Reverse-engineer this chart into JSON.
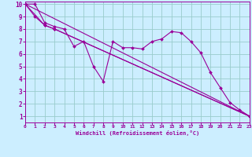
{
  "xlabel": "Windchill (Refroidissement éolien,°C)",
  "bg_color": "#cceeff",
  "line_color": "#990099",
  "grid_color": "#99cccc",
  "xlim": [
    0,
    23
  ],
  "ylim": [
    0.5,
    10.2
  ],
  "xticks": [
    0,
    1,
    2,
    3,
    4,
    5,
    6,
    7,
    8,
    9,
    10,
    11,
    12,
    13,
    14,
    15,
    16,
    17,
    18,
    19,
    20,
    21,
    22,
    23
  ],
  "yticks": [
    1,
    2,
    3,
    4,
    5,
    6,
    7,
    8,
    9,
    10
  ],
  "series": [
    {
      "x": [
        0,
        1,
        2,
        3,
        4,
        5,
        6,
        7,
        8,
        9,
        10,
        11,
        12,
        13,
        14,
        15,
        16,
        17,
        18,
        19,
        20,
        21,
        22,
        23
      ],
      "y": [
        10,
        10,
        8.5,
        8.2,
        8.0,
        6.6,
        7.0,
        5.0,
        3.8,
        7.0,
        6.5,
        6.5,
        6.4,
        7.0,
        7.2,
        7.8,
        7.7,
        7.0,
        6.1,
        4.5,
        3.3,
        2.1,
        1.5,
        1.0
      ]
    },
    {
      "x": [
        0,
        1,
        2,
        3,
        23
      ],
      "y": [
        10,
        9.0,
        8.3,
        8.0,
        1.0
      ]
    },
    {
      "x": [
        0,
        2,
        3,
        23
      ],
      "y": [
        10,
        8.3,
        8.0,
        1.0
      ]
    },
    {
      "x": [
        0,
        23
      ],
      "y": [
        10,
        1.0
      ]
    }
  ]
}
